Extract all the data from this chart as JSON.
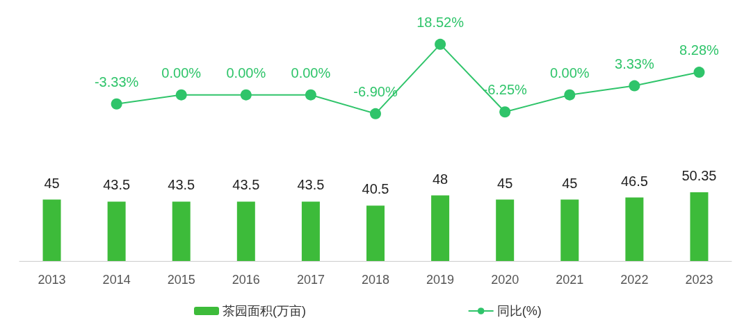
{
  "chart_data": [
    {
      "type": "line",
      "categories": [
        "2013",
        "2014",
        "2015",
        "2016",
        "2017",
        "2018",
        "2019",
        "2020",
        "2021",
        "2022",
        "2023"
      ],
      "tick_labels": false,
      "marker": "circle",
      "line_style": "solid",
      "legend": "bottom",
      "series": [
        {
          "name": "同比(%)",
          "color": "#2fc46a",
          "values": [
            null,
            -3.33,
            0,
            0,
            0,
            -6.9,
            18.52,
            -6.25,
            0,
            3.33,
            8.28
          ],
          "value_labels": [
            null,
            "-3.33%",
            "0.00%",
            "0.00%",
            "0.00%",
            "-6.90%",
            "18.52%",
            "-6.25%",
            "0.00%",
            "3.33%",
            "8.28%"
          ]
        }
      ]
    },
    {
      "type": "bar",
      "categories": [
        "2013",
        "2014",
        "2015",
        "2016",
        "2017",
        "2018",
        "2019",
        "2020",
        "2021",
        "2022",
        "2023"
      ],
      "data_labels": true,
      "legend": "bottom",
      "series": [
        {
          "name": "茶园面积(万亩)",
          "color": "#3dbb3a",
          "values": [
            45,
            43.5,
            43.5,
            43.5,
            43.5,
            40.5,
            48,
            45,
            45,
            46.5,
            50.35
          ]
        }
      ]
    }
  ]
}
